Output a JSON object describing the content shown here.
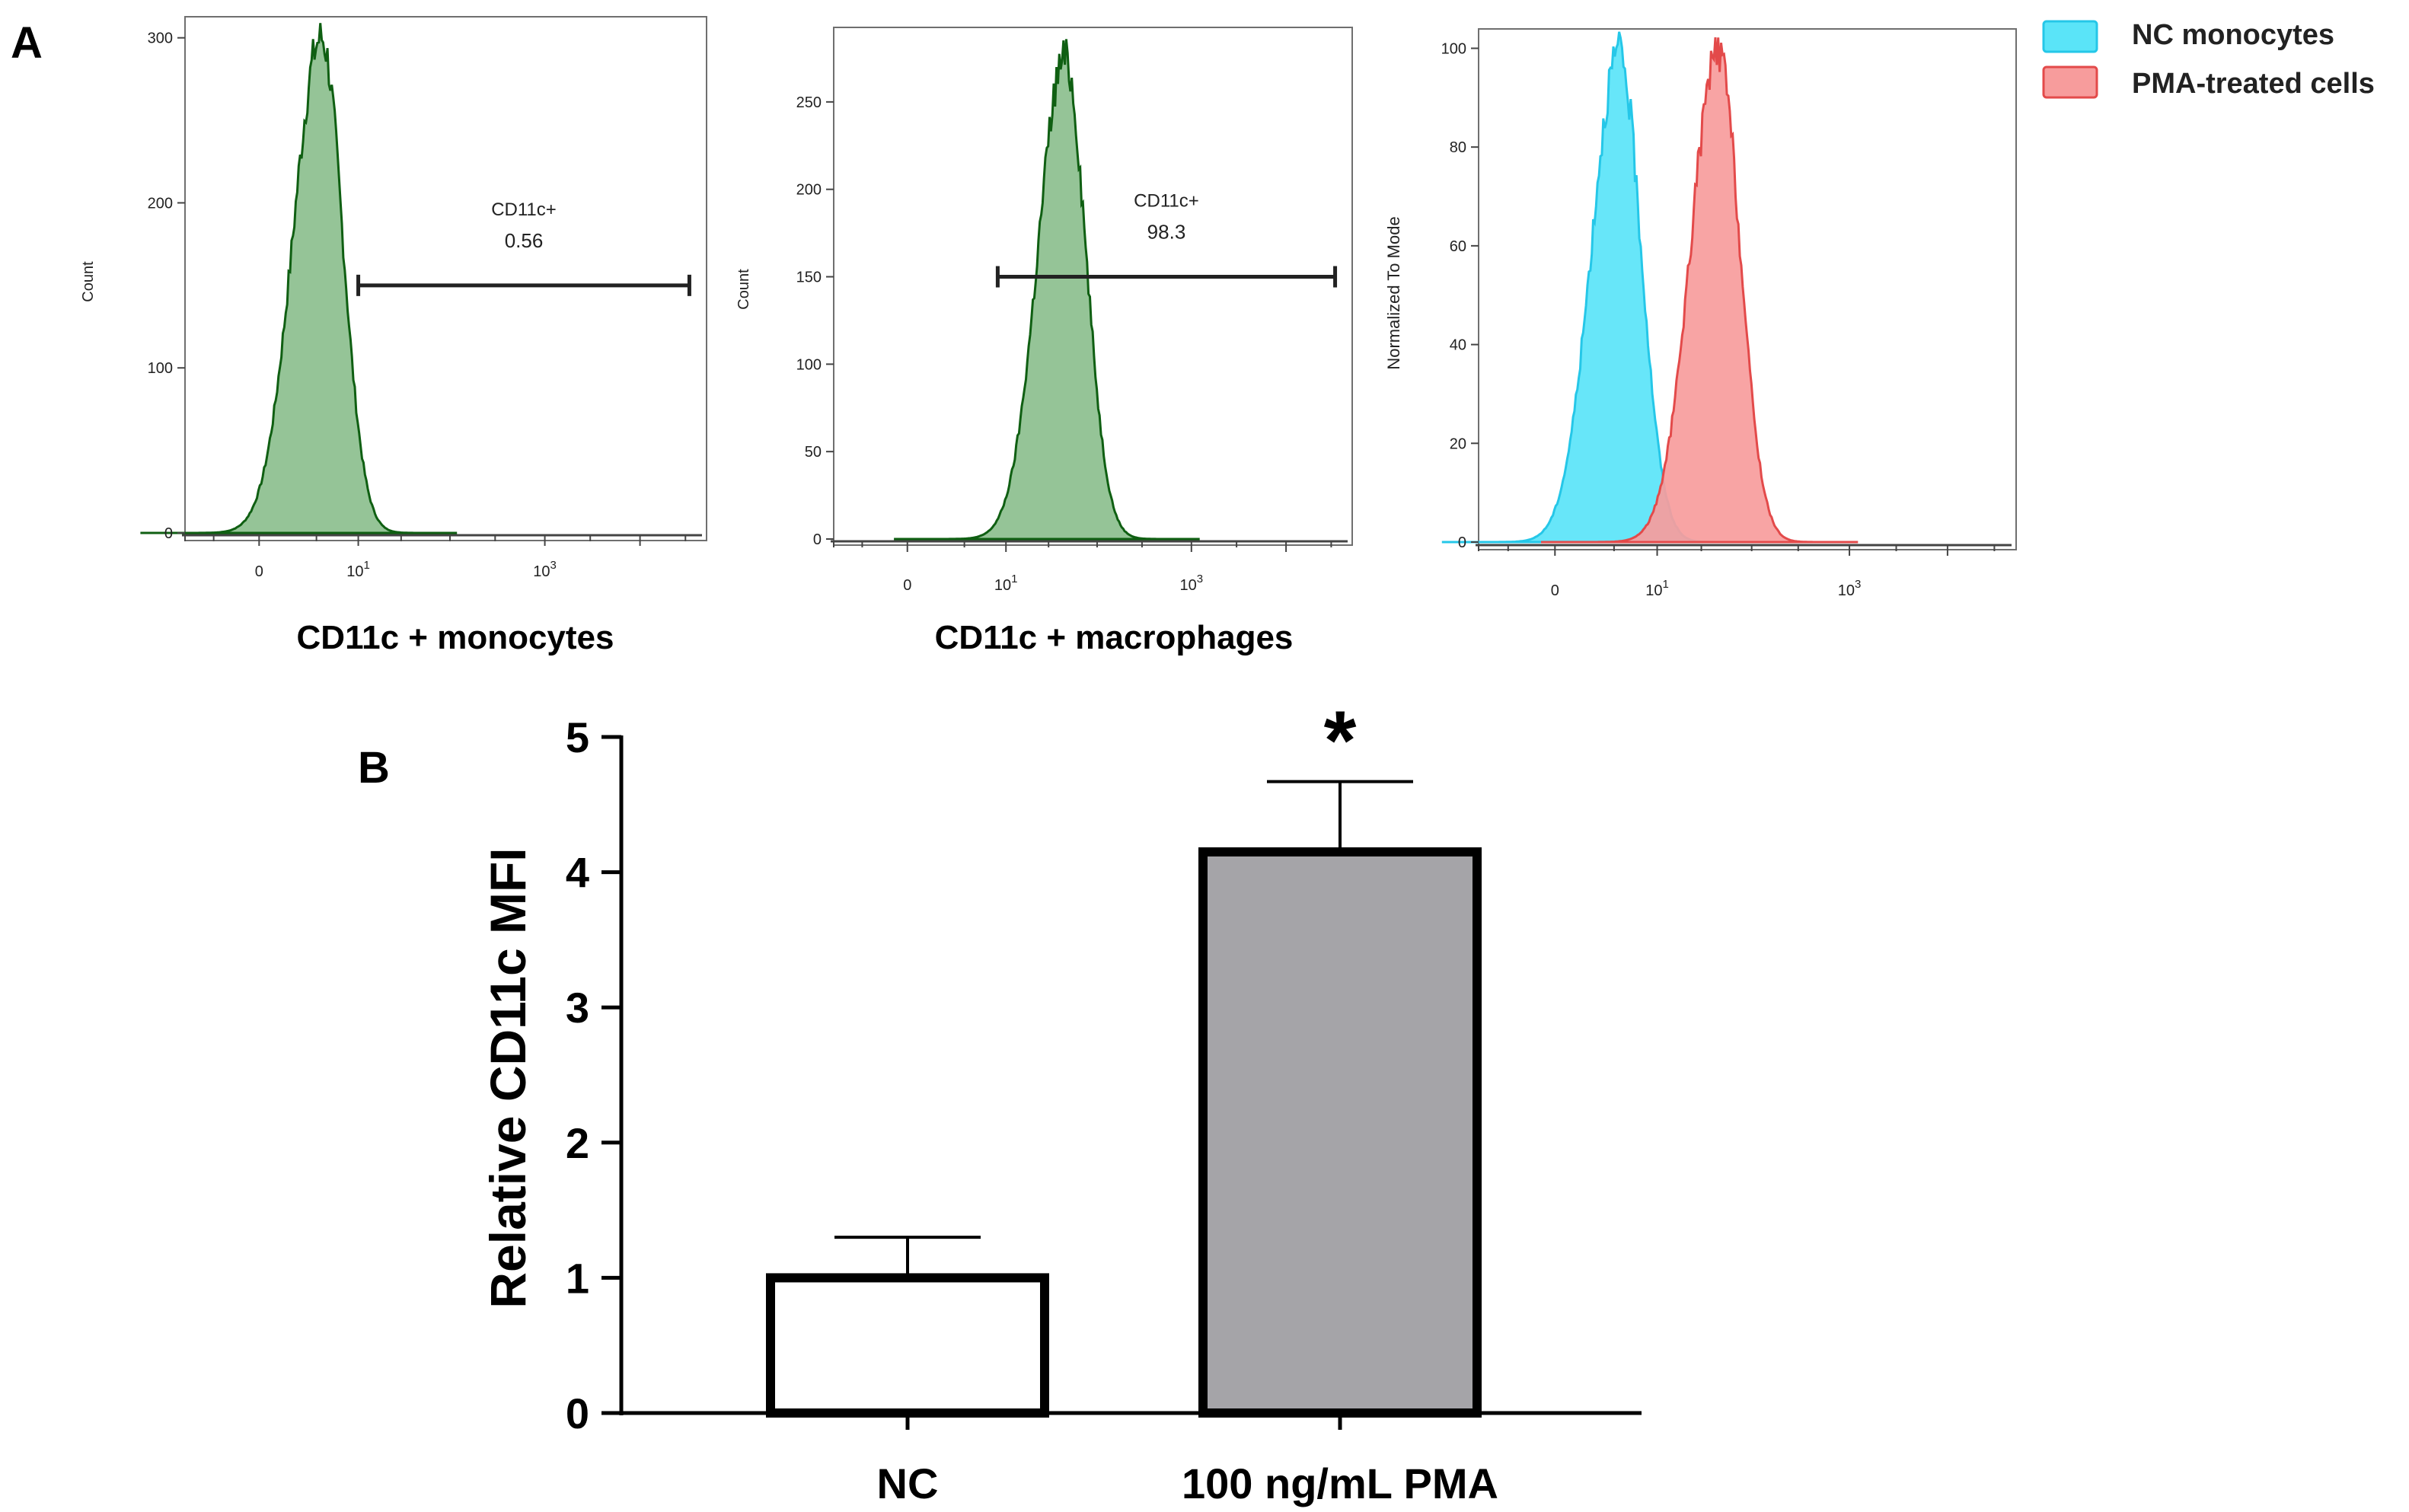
{
  "panel_labels": {
    "a": "A",
    "b": "B"
  },
  "legend": {
    "items": [
      {
        "label": "NC monocytes",
        "color": "#5ae4f8",
        "edge": "#25c7e8"
      },
      {
        "label": "PMA-treated cells",
        "color": "#f79c9c",
        "edge": "#e34a4a"
      }
    ]
  },
  "colors": {
    "green_fill": "#8cbf8e",
    "green_edge": "#0f5f12",
    "bar_gray": "#a5a4a8"
  },
  "chart_data": [
    {
      "type": "area",
      "id": "hist-monocytes",
      "title": "CD11c + monocytes",
      "ylabel": "Count",
      "xscale": "biexponential",
      "x_ticks": [
        {
          "value": 0,
          "label": "0",
          "sup": ""
        },
        {
          "value": 10,
          "label": "10",
          "sup": "1"
        },
        {
          "value": 1000,
          "label": "10",
          "sup": "3"
        }
      ],
      "x_range": [
        -5,
        50000
      ],
      "ylim": [
        0,
        310
      ],
      "y_ticks": [
        0,
        100,
        200,
        300
      ],
      "series": [
        {
          "name": "CD11c",
          "peak_x": 3.5,
          "peak_y": 300,
          "left_width": 1.0,
          "right_width": 0.75
        }
      ],
      "gate": {
        "name": "CD11c+",
        "value": "0.56",
        "x_start": 10,
        "x_end": 33000,
        "y": 150
      }
    },
    {
      "type": "area",
      "id": "hist-macrophages",
      "title": "CD11c + macrophages",
      "ylabel": "Count",
      "xscale": "biexponential",
      "x_ticks": [
        {
          "value": 0,
          "label": "0",
          "sup": ""
        },
        {
          "value": 10,
          "label": "10",
          "sup": "1"
        },
        {
          "value": 1000,
          "label": "10",
          "sup": "3"
        }
      ],
      "x_range": [
        -5,
        50000
      ],
      "ylim": [
        0,
        290
      ],
      "y_ticks": [
        0,
        50,
        100,
        150,
        200,
        250
      ],
      "series": [
        {
          "name": "CD11c",
          "peak_x": 45,
          "peak_y": 275,
          "left_width": 0.95,
          "right_width": 0.75
        }
      ],
      "gate": {
        "name": "CD11c+",
        "value": "98.3",
        "x_start": 8,
        "x_end": 33000,
        "y": 150
      }
    },
    {
      "type": "area",
      "id": "hist-overlay",
      "title": "",
      "ylabel": "Normalized To Mode",
      "xscale": "biexponential",
      "x_ticks": [
        {
          "value": 0,
          "label": "0",
          "sup": ""
        },
        {
          "value": 10,
          "label": "10",
          "sup": "1"
        },
        {
          "value": 1000,
          "label": "10",
          "sup": "3"
        }
      ],
      "x_range": [
        -5,
        50000
      ],
      "ylim": [
        0,
        103
      ],
      "y_ticks": [
        0,
        20,
        40,
        60,
        80,
        100
      ],
      "series": [
        {
          "name": "NC monocytes",
          "peak_x": 3.5,
          "peak_y": 99,
          "left_width": 0.95,
          "right_width": 0.75
        },
        {
          "name": "PMA-treated cells",
          "peak_x": 45,
          "peak_y": 99,
          "left_width": 0.95,
          "right_width": 0.75
        }
      ]
    },
    {
      "type": "bar",
      "id": "bar-mfi",
      "title": "",
      "xlabel": "",
      "ylabel": "Relative CD11c MFI",
      "categories": [
        "NC",
        "100 ng/mL PMA"
      ],
      "values": [
        1.0,
        4.15
      ],
      "errors": [
        0.3,
        0.52
      ],
      "ylim": [
        0,
        5
      ],
      "y_ticks": [
        0,
        1,
        2,
        3,
        4,
        5
      ],
      "annotations": [
        {
          "category": "100 ng/mL PMA",
          "text": "*"
        }
      ],
      "grid": false
    }
  ]
}
